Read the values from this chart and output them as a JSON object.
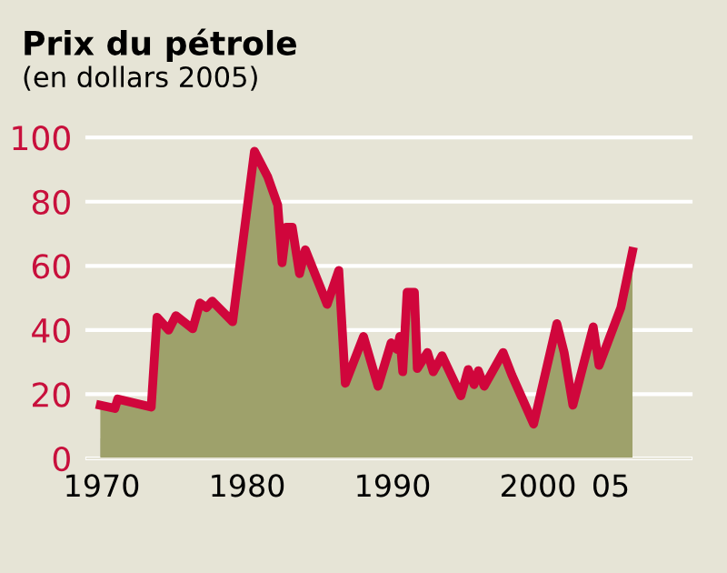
{
  "chart_data": {
    "type": "area",
    "title": "Prix du pétrole",
    "subtitle": "(en dollars 2005)",
    "x": [
      1969.9,
      1970.9,
      1971.1,
      1973.4,
      1973.8,
      1974.6,
      1975.1,
      1976.25,
      1976.75,
      1977.2,
      1977.6,
      1979,
      1980.5,
      1981.4,
      1982.1,
      1982.4,
      1982.7,
      1983.1,
      1983.6,
      1984,
      1985.5,
      1986.3,
      1986.75,
      1988,
      1989,
      1989.9,
      1990.3,
      1990.5,
      1990.7,
      1991,
      1991.5,
      1991.7,
      1992.4,
      1992.8,
      1993.4,
      1994.7,
      1995.2,
      1995.6,
      1995.9,
      1996.3,
      1997.6,
      1998.2,
      1999.7,
      2001.3,
      2001.8,
      2002.4,
      2003.8,
      2004.2,
      2005.7,
      2006.5
    ],
    "series": [
      {
        "color": "#9ea16b",
        "values": [
          16.6,
          15.6,
          18.5,
          16,
          44,
          40,
          44.5,
          40.4,
          48.4,
          47,
          49,
          42.6,
          95.7,
          87.9,
          79,
          61,
          72,
          72,
          57.6,
          65,
          48,
          58.6,
          23.4,
          38,
          22.5,
          36,
          34,
          38,
          27,
          51.8,
          51.8,
          28,
          33,
          27,
          32,
          19.5,
          27.7,
          23,
          27.3,
          22.5,
          33,
          26,
          10.7,
          42,
          33,
          16.6,
          41,
          29,
          47,
          64.5
        ]
      },
      {
        "type": "line",
        "color": "#d0063c",
        "values": [
          16.6,
          15.6,
          18.5,
          16,
          44,
          40,
          44.5,
          40.4,
          48.4,
          47,
          49,
          42.6,
          95.7,
          87.9,
          79,
          61,
          72,
          72,
          57.6,
          65,
          48,
          58.6,
          23.4,
          38,
          22.5,
          36,
          34,
          38,
          27,
          51.8,
          51.8,
          28,
          33,
          27,
          32,
          19.5,
          27.7,
          23,
          27.3,
          22.5,
          33,
          26,
          10.7,
          42,
          33,
          16.6,
          41,
          29,
          47,
          64.5
        ]
      }
    ],
    "xlim": [
      1969,
      2010.5
    ],
    "ylim": [
      0,
      100
    ],
    "xticks": [
      1970,
      1980,
      1990,
      2000,
      {
        "value": 2005,
        "label": "05"
      }
    ],
    "yticks": [
      0,
      20,
      40,
      60,
      80,
      100
    ],
    "grid": "y"
  }
}
